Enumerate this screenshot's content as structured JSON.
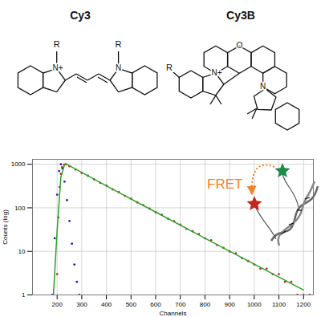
{
  "chart_data": {
    "type": "scatter",
    "log": "y",
    "grid": true,
    "x_label": "Channels",
    "y_label": "Counts (log)",
    "xlim": [
      100,
      1240
    ],
    "xticks": [
      200,
      300,
      400,
      500,
      600,
      700,
      800,
      900,
      1000,
      1100,
      1200
    ],
    "ylim": [
      1,
      1300
    ],
    "yticks": [
      1,
      10,
      100,
      1000
    ],
    "annotations": [
      "FRET"
    ],
    "series": [
      {
        "type": "scatter",
        "marker": "dot",
        "color": "#1f1fb0",
        "x": [
          180,
          190,
          200,
          208,
          215,
          222,
          230,
          240,
          250,
          260,
          270,
          280,
          290
        ],
        "values": [
          1,
          20,
          200,
          700,
          1000,
          800,
          400,
          150,
          50,
          15,
          5,
          2,
          1
        ]
      },
      {
        "type": "scatter",
        "marker": "dot",
        "color": "#c0281e",
        "x": [
          200,
          205,
          210,
          215,
          220,
          228,
          235,
          250,
          275,
          300,
          325,
          350,
          375,
          400,
          425,
          450,
          475,
          500,
          525,
          550,
          575,
          600,
          625,
          650,
          675,
          700,
          725,
          750,
          775,
          800,
          825,
          850,
          875,
          900,
          925,
          950,
          975,
          1000,
          1025,
          1050,
          1075,
          1100,
          1125,
          1150,
          1175,
          1200,
          1225
        ],
        "values": [
          3,
          60,
          300,
          600,
          850,
          980,
          1000,
          900,
          760,
          630,
          545,
          450,
          375,
          325,
          265,
          230,
          188,
          162,
          133,
          115,
          96,
          79,
          69,
          56,
          49,
          41,
          33,
          29,
          25,
          20,
          18,
          14,
          12,
          10,
          9,
          7,
          6,
          5,
          4,
          4,
          3,
          3,
          2,
          2,
          1,
          1,
          1
        ]
      },
      {
        "type": "line",
        "line_style": "solid",
        "color": "#2ca02c",
        "x": [
          185,
          200,
          215,
          230,
          240,
          400,
          600,
          800,
          1000,
          1200
        ],
        "values": [
          1,
          30,
          500,
          980,
          990,
          320,
          80,
          20,
          5.1,
          1.3
        ]
      }
    ]
  },
  "structures": [
    {
      "name": "Cy3",
      "atom_labels": [
        "R",
        "N+",
        "N",
        "R"
      ]
    },
    {
      "name": "Cy3B",
      "atom_labels": [
        "R",
        "N+",
        "O",
        "N"
      ]
    }
  ]
}
